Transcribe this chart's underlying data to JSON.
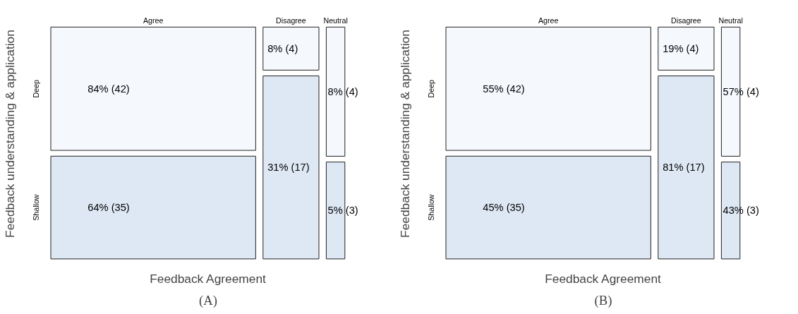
{
  "chart_data": [
    {
      "type": "other",
      "categories": [
        "Agree",
        "Disagree",
        "Neutral"
      ],
      "xlabel": "Feedback Agreement",
      "ylabel": "Feedback understanding & application",
      "annotations": [
        "(A)"
      ],
      "series": [
        {
          "name": "Deep",
          "color": "#f5f9fe",
          "values": [
            42,
            4,
            4
          ],
          "value_labels": [
            "84% (42)",
            "8% (4)",
            "8% (4)"
          ]
        },
        {
          "name": "Shallow",
          "color": "#dde8f4",
          "values": [
            35,
            17,
            3
          ],
          "value_labels": [
            "64% (35)",
            "31% (17)",
            "5% (3)"
          ]
        }
      ]
    },
    {
      "type": "other",
      "categories": [
        "Agree",
        "Disagree",
        "Neutral"
      ],
      "xlabel": "Feedback Agreement",
      "ylabel": "Feedback understanding & application",
      "annotations": [
        "(B)"
      ],
      "series": [
        {
          "name": "Deep",
          "color": "#f5f9fe",
          "values": [
            42,
            4,
            4
          ],
          "value_labels": [
            "55% (42)",
            "19% (4)",
            "57% (4)"
          ]
        },
        {
          "name": "Shallow",
          "color": "#dde8f4",
          "values": [
            35,
            17,
            3
          ],
          "value_labels": [
            "45% (35)",
            "81% (17)",
            "43% (3)"
          ]
        }
      ]
    }
  ]
}
